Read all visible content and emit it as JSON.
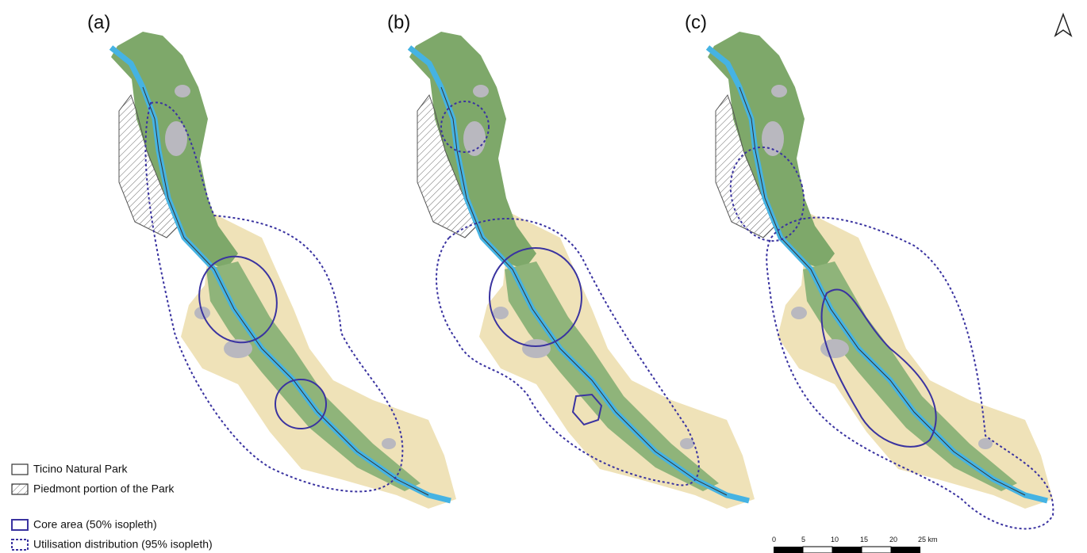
{
  "panels": [
    {
      "label": "(a)"
    },
    {
      "label": "(b)"
    },
    {
      "label": "(c)"
    }
  ],
  "legend": {
    "items": [
      {
        "label": "Ticino Natural Park"
      },
      {
        "label": "Piedmont portion of the Park"
      },
      {
        "label": "Core area (50% isopleth)"
      },
      {
        "label": "Utilisation distribution (95% isopleth)"
      }
    ]
  },
  "scale_bar": {
    "labels": [
      "0",
      "5",
      "10",
      "15",
      "20",
      "25 km"
    ]
  }
}
